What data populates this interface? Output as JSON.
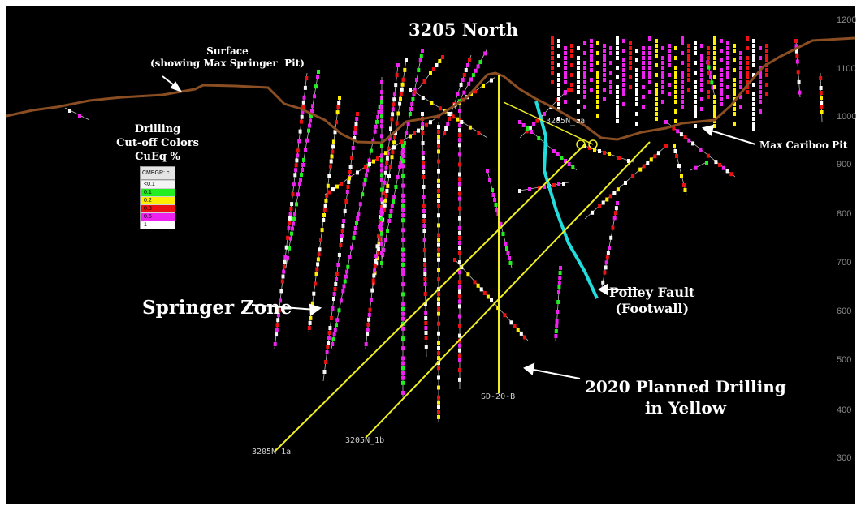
{
  "title": "3205 North",
  "annotations": {
    "surface": "Surface\n(showing Max Springer  Pit)",
    "legend_caption": "Drilling\nCut-off Colors\nCuEq %",
    "springer_zone": "Springer Zone",
    "polley_fault": "Polley Fault\n(Footwall)",
    "planned_drilling": "2020 Planned Drilling\nin Yellow",
    "max_cariboo_pit": "Max Cariboo Pit"
  },
  "legend": {
    "header": "CMBGR: c",
    "items": [
      {
        "label": "<0.1",
        "color": "#f4f4f4"
      },
      {
        "label": "0.1",
        "color": "#22ee22"
      },
      {
        "label": "0.2",
        "color": "#ffee00"
      },
      {
        "label": "0.3",
        "color": "#ee1111"
      },
      {
        "label": "0.5",
        "color": "#ee22ee"
      },
      {
        "label": "1",
        "color": "#ffffff"
      }
    ]
  },
  "elevation_labels": [
    "1200",
    "1100",
    "1000",
    "900",
    "800",
    "700",
    "600",
    "500",
    "400",
    "300"
  ],
  "planned_holes": [
    "3205N_1a",
    "3205N_1b",
    "SD-20-B",
    "3205N_1a"
  ],
  "colors": {
    "background": "#000000",
    "surface_line": "#8a4e22",
    "planned": "#eeee22",
    "fault": "#22dddd",
    "arrow": "#ffffff"
  }
}
